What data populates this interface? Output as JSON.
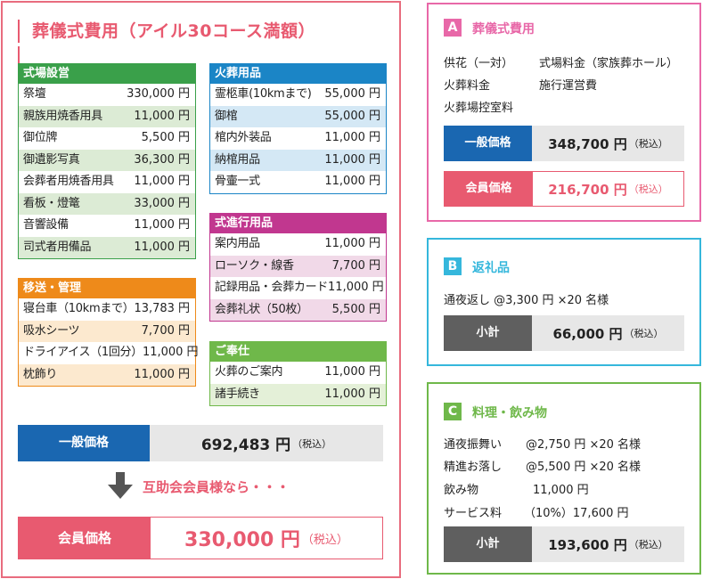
{
  "title": "葬儀式費用（アイル30コース満額）",
  "categories": {
    "venue": {
      "header": "式場設営",
      "items": [
        {
          "name": "祭壇",
          "price": "330,000 円"
        },
        {
          "name": "親族用焼香用具",
          "price": "11,000 円"
        },
        {
          "name": "御位牌",
          "price": "5,500 円"
        },
        {
          "name": "御遺影写真",
          "price": "36,300 円"
        },
        {
          "name": "会葬者用焼香用具",
          "price": "11,000 円"
        },
        {
          "name": "看板・燈篭",
          "price": "33,000 円"
        },
        {
          "name": "音響設備",
          "price": "11,000 円"
        },
        {
          "name": "司式者用備品",
          "price": "11,000 円"
        }
      ]
    },
    "cremation": {
      "header": "火葬用品",
      "items": [
        {
          "name": "霊柩車(10kmまで)",
          "price": "55,000 円"
        },
        {
          "name": "御棺",
          "price": "55,000 円"
        },
        {
          "name": "棺内外装品",
          "price": "11,000 円"
        },
        {
          "name": "納棺用品",
          "price": "11,000 円"
        },
        {
          "name": "骨壷一式",
          "price": "11,000 円"
        }
      ]
    },
    "ceremony": {
      "header": "式進行用品",
      "items": [
        {
          "name": "案内用品",
          "price": "11,000 円"
        },
        {
          "name": "ローソク・線香",
          "price": "7,700 円"
        },
        {
          "name": "記録用品・会葬カード",
          "price": "11,000 円"
        },
        {
          "name": "会葬礼状（50枚）",
          "price": "5,500 円"
        }
      ]
    },
    "transport": {
      "header": "移送・管理",
      "items": [
        {
          "name": "寝台車（10kmまで）",
          "price": "13,783 円"
        },
        {
          "name": "吸水シーツ",
          "price": "7,700 円"
        },
        {
          "name": "ドライアイス（1回分）",
          "price": "11,000 円"
        },
        {
          "name": "枕飾り",
          "price": "11,000 円"
        }
      ]
    },
    "service": {
      "header": "ご奉仕",
      "items": [
        {
          "name": "火葬のご案内",
          "price": "11,000 円"
        },
        {
          "name": "諸手続き",
          "price": "11,000 円"
        }
      ]
    }
  },
  "general_price": {
    "label": "一般価格",
    "value": "692,483 円",
    "tax": "（税込）"
  },
  "member_note": "互助会会員様なら・・・",
  "member_price": {
    "label": "会員価格",
    "value": "330,000 円",
    "tax": "（税込）"
  },
  "panel_a": {
    "badge": "A",
    "title": "葬儀式費用",
    "items_col1": [
      "供花（一対）",
      "火葬料金",
      "火葬場控室料"
    ],
    "items_col2": [
      "式場料金（家族葬ホール）",
      "施行運営費"
    ],
    "general": {
      "label": "一般価格",
      "value": "348,700 円",
      "tax": "（税込）"
    },
    "member": {
      "label": "会員価格",
      "value": "216,700 円",
      "tax": "（税込）"
    }
  },
  "panel_b": {
    "badge": "B",
    "title": "返礼品",
    "line": "通夜返し @3,300 円 ×20 名様",
    "subtotal": {
      "label": "小計",
      "value": "66,000 円",
      "tax": "（税込）"
    }
  },
  "panel_c": {
    "badge": "C",
    "title": "料理・飲み物",
    "rows": [
      {
        "name": "通夜振舞い",
        "detail": "@2,750 円 ×20 名様"
      },
      {
        "name": "精進お落し",
        "detail": "@5,500 円 ×20 名様"
      },
      {
        "name": "飲み物",
        "detail": "11,000 円"
      },
      {
        "name": "サービス料",
        "detail": "（10%）17,600 円"
      }
    ],
    "subtotal": {
      "label": "小計",
      "value": "193,600 円",
      "tax": "（税込）"
    }
  },
  "colors": {
    "accent_pink": "#e85a70",
    "venue_green": "#3aa04a",
    "cremation_blue": "#1b85c6",
    "ceremony_magenta": "#c1378f",
    "transport_orange": "#ee8a1a",
    "service_green": "#6fb84a",
    "general_blue": "#1a67b1",
    "member_pink": "#e85a70",
    "subtotal_gray": "#5f5f5f",
    "value_gray": "#e7e7e7"
  }
}
